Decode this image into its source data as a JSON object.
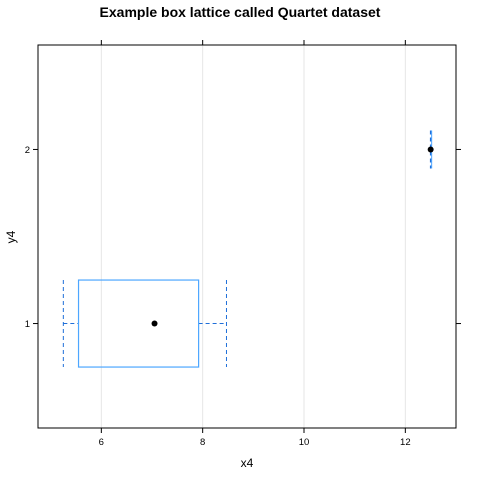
{
  "chart_data": {
    "type": "box",
    "title": "Example box lattice called Quartet dataset",
    "xlabel": "x4",
    "ylabel": "y4",
    "xlim": [
      4.75,
      13.0
    ],
    "ylim": [
      0.4,
      2.6
    ],
    "x_ticks": [
      6,
      8,
      10,
      12
    ],
    "x_tick_labels": [
      "6",
      "8",
      "10",
      "12"
    ],
    "y_ticks": [
      1,
      2
    ],
    "y_tick_labels": [
      "1",
      "2"
    ],
    "grid": "vertical",
    "box_color": "#4da6ff",
    "whisker_color": "#1f6fd9",
    "median_color": "#000000",
    "boxes": [
      {
        "y": 1,
        "whisker_low": 5.25,
        "q1": 5.55,
        "median": 7.05,
        "q3": 7.92,
        "whisker_high": 8.47
      },
      {
        "y": 2,
        "whisker_low": 12.5,
        "q1": 12.5,
        "median": 12.5,
        "q3": 12.5,
        "whisker_high": 12.5
      }
    ]
  }
}
